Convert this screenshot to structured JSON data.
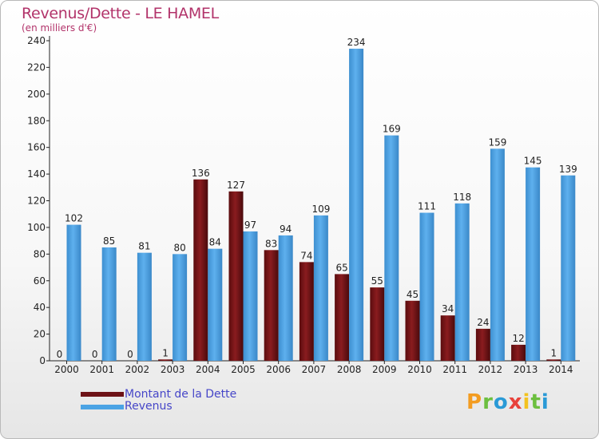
{
  "header": {
    "title": "Revenus/Dette - LE HAMEL",
    "subtitle": "(en milliers d'€)"
  },
  "legend": {
    "debt_label": "Montant de la Dette",
    "revenue_label": "Revenus"
  },
  "logo": {
    "text": "Proxiti"
  },
  "colors": {
    "debt": "#7a1518",
    "revenue": "#4aa3e4",
    "title": "#b2336a",
    "legend_text": "#4646c8"
  },
  "chart_data": {
    "type": "bar",
    "title": "Revenus/Dette - LE HAMEL",
    "subtitle": "(en milliers d'€)",
    "categories": [
      "2000",
      "2001",
      "2002",
      "2003",
      "2004",
      "2005",
      "2006",
      "2007",
      "2008",
      "2009",
      "2010",
      "2011",
      "2012",
      "2013",
      "2014"
    ],
    "series": [
      {
        "name": "Montant de la Dette",
        "values": [
          0,
          0,
          0,
          1,
          136,
          127,
          83,
          74,
          65,
          55,
          45,
          34,
          24,
          12,
          1
        ]
      },
      {
        "name": "Revenus",
        "values": [
          102,
          85,
          81,
          80,
          84,
          97,
          94,
          109,
          234,
          169,
          111,
          118,
          159,
          145,
          139
        ]
      }
    ],
    "ylim": [
      0,
      240
    ],
    "yticks": [
      0,
      20,
      40,
      60,
      80,
      100,
      120,
      140,
      160,
      180,
      200,
      220,
      240
    ],
    "grid": false,
    "legend_position": "bottom-left"
  }
}
